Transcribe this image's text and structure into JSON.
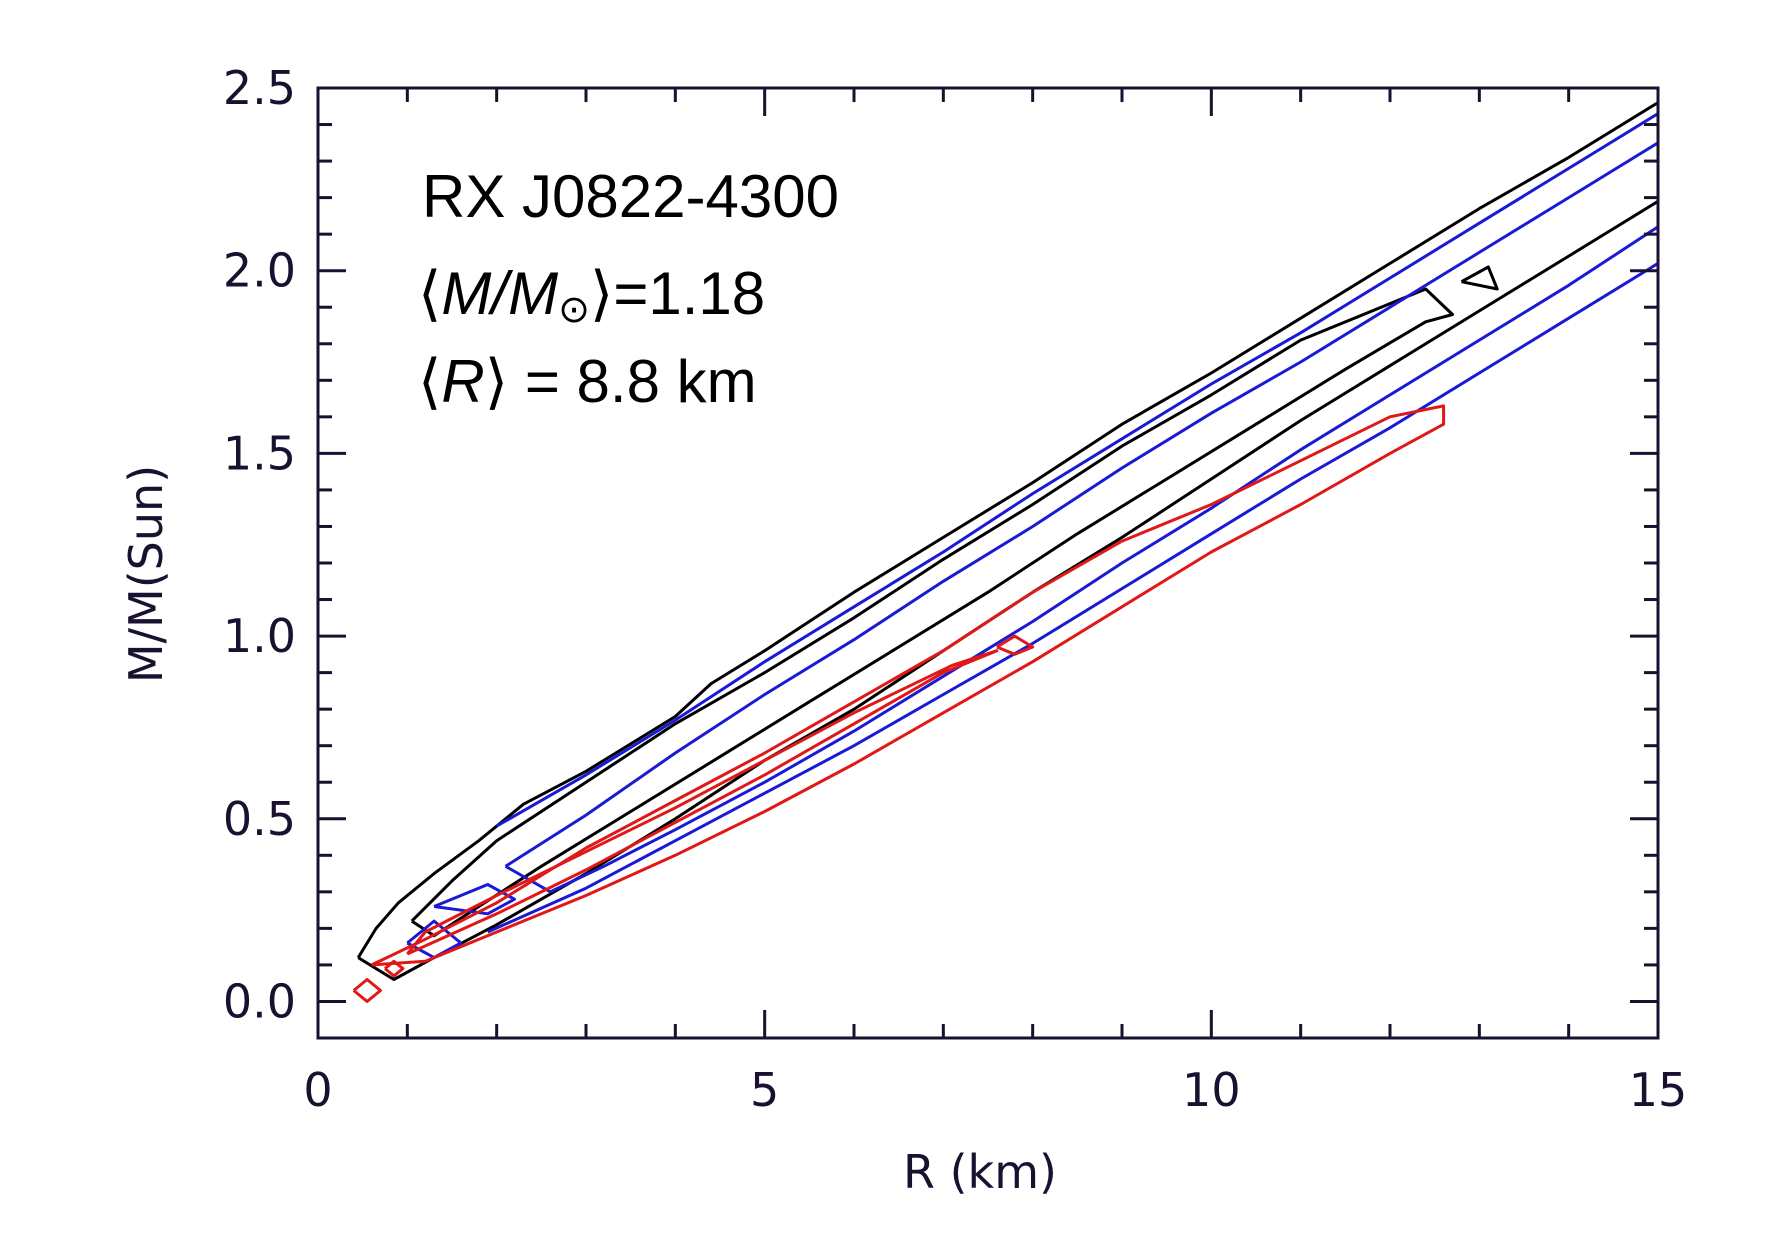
{
  "chart_data": {
    "type": "contour",
    "title": "",
    "xlabel": "R (km)",
    "ylabel": "M/M(Sun)",
    "xlim": [
      0,
      15
    ],
    "ylim": [
      -0.1,
      2.5
    ],
    "x_ticks": [
      0,
      5,
      10,
      15
    ],
    "x_tick_labels": [
      "0",
      "5",
      "10",
      "15"
    ],
    "x_minor_step": 1,
    "y_ticks": [
      0.0,
      0.5,
      1.0,
      1.5,
      2.0,
      2.5
    ],
    "y_tick_labels": [
      "0.0",
      "0.5",
      "1.0",
      "1.5",
      "2.0",
      "2.5"
    ],
    "y_minor_step": 0.1,
    "annotations": {
      "source": "RX J0822-4300",
      "mean_mass_prefix": "⟨",
      "mean_mass_var": "M/M",
      "mean_mass_sun": "⊙",
      "mean_mass_suffix": "⟩=1.18",
      "mean_radius_prefix": "⟨",
      "mean_radius_var": "R",
      "mean_radius_suffix": "⟩ = 8.8 km"
    },
    "colors": {
      "black": "#000000",
      "blue": "#1a1ad6",
      "red": "#e01818",
      "axis": "#1a1030"
    },
    "series": [
      {
        "name": "black-outer",
        "color": "#000000",
        "points": [
          [
            0.45,
            0.12
          ],
          [
            0.65,
            0.2
          ],
          [
            0.9,
            0.27
          ],
          [
            1.3,
            0.35
          ],
          [
            1.8,
            0.44
          ],
          [
            2.3,
            0.54
          ],
          [
            3.0,
            0.63
          ],
          [
            4.0,
            0.78
          ],
          [
            4.4,
            0.87
          ],
          [
            5.0,
            0.96
          ],
          [
            6.0,
            1.12
          ],
          [
            7.0,
            1.27
          ],
          [
            8.0,
            1.42
          ],
          [
            9.0,
            1.58
          ],
          [
            10.0,
            1.72
          ],
          [
            11.0,
            1.87
          ],
          [
            12.0,
            2.02
          ],
          [
            13.0,
            2.17
          ],
          [
            14.0,
            2.31
          ],
          [
            15.0,
            2.46
          ]
        ]
      },
      {
        "name": "black-outer-lower",
        "color": "#000000",
        "points": [
          [
            0.45,
            0.12
          ],
          [
            0.85,
            0.06
          ],
          [
            1.3,
            0.12
          ],
          [
            2.0,
            0.21
          ],
          [
            3.0,
            0.35
          ],
          [
            4.0,
            0.5
          ],
          [
            5.0,
            0.66
          ],
          [
            6.0,
            0.8
          ],
          [
            7.0,
            0.96
          ],
          [
            8.0,
            1.12
          ],
          [
            9.0,
            1.27
          ],
          [
            10.0,
            1.43
          ],
          [
            11.0,
            1.59
          ],
          [
            12.0,
            1.74
          ],
          [
            13.0,
            1.89
          ],
          [
            14.0,
            2.04
          ],
          [
            15.0,
            2.19
          ]
        ]
      },
      {
        "name": "black-inner",
        "color": "#000000",
        "points": [
          [
            1.05,
            0.22
          ],
          [
            1.5,
            0.33
          ],
          [
            2.0,
            0.44
          ],
          [
            3.0,
            0.6
          ],
          [
            4.0,
            0.76
          ],
          [
            5.0,
            0.9
          ],
          [
            6.0,
            1.05
          ],
          [
            7.0,
            1.21
          ],
          [
            8.0,
            1.36
          ],
          [
            9.0,
            1.52
          ],
          [
            10.0,
            1.66
          ],
          [
            11.0,
            1.81
          ],
          [
            12.4,
            1.95
          ],
          [
            12.7,
            1.88
          ],
          [
            12.4,
            1.86
          ],
          [
            11.5,
            1.73
          ],
          [
            10.5,
            1.58
          ],
          [
            9.5,
            1.43
          ],
          [
            8.5,
            1.28
          ],
          [
            7.5,
            1.12
          ],
          [
            6.5,
            0.97
          ],
          [
            5.5,
            0.82
          ],
          [
            4.5,
            0.67
          ],
          [
            3.5,
            0.52
          ],
          [
            2.5,
            0.37
          ],
          [
            1.8,
            0.26
          ],
          [
            1.3,
            0.18
          ],
          [
            1.05,
            0.22
          ]
        ]
      },
      {
        "name": "black-small",
        "color": "#000000",
        "points": [
          [
            12.8,
            1.97
          ],
          [
            13.1,
            2.01
          ],
          [
            13.2,
            1.95
          ],
          [
            12.8,
            1.97
          ]
        ]
      },
      {
        "name": "blue-upper",
        "color": "#1a1ad6",
        "points": [
          [
            2.0,
            0.48
          ],
          [
            3.0,
            0.62
          ],
          [
            4.0,
            0.77
          ],
          [
            5.0,
            0.93
          ],
          [
            6.0,
            1.08
          ],
          [
            7.0,
            1.23
          ],
          [
            8.0,
            1.39
          ],
          [
            9.0,
            1.54
          ],
          [
            10.0,
            1.69
          ],
          [
            11.0,
            1.83
          ],
          [
            12.0,
            1.98
          ],
          [
            13.0,
            2.13
          ],
          [
            14.0,
            2.28
          ],
          [
            15.0,
            2.43
          ]
        ]
      },
      {
        "name": "blue-mid",
        "color": "#1a1ad6",
        "points": [
          [
            2.1,
            0.37
          ],
          [
            3.0,
            0.51
          ],
          [
            4.0,
            0.68
          ],
          [
            5.0,
            0.84
          ],
          [
            6.0,
            0.99
          ],
          [
            7.0,
            1.15
          ],
          [
            8.0,
            1.3
          ],
          [
            9.0,
            1.46
          ],
          [
            10.0,
            1.61
          ],
          [
            11.0,
            1.75
          ],
          [
            12.0,
            1.9
          ],
          [
            13.0,
            2.05
          ],
          [
            14.0,
            2.2
          ],
          [
            15.0,
            2.35
          ]
        ]
      },
      {
        "name": "blue-lower",
        "color": "#1a1ad6",
        "points": [
          [
            2.1,
            0.37
          ],
          [
            2.6,
            0.3
          ],
          [
            3.2,
            0.37
          ],
          [
            4.0,
            0.47
          ],
          [
            5.0,
            0.6
          ],
          [
            6.0,
            0.74
          ],
          [
            7.0,
            0.89
          ],
          [
            8.0,
            1.04
          ],
          [
            9.0,
            1.2
          ],
          [
            10.0,
            1.35
          ],
          [
            11.0,
            1.51
          ],
          [
            12.0,
            1.66
          ],
          [
            13.0,
            1.81
          ],
          [
            14.0,
            1.96
          ],
          [
            15.0,
            2.12
          ]
        ]
      },
      {
        "name": "blue-bottom",
        "color": "#1a1ad6",
        "points": [
          [
            1.9,
            0.19
          ],
          [
            3.0,
            0.31
          ],
          [
            4.0,
            0.44
          ],
          [
            5.0,
            0.57
          ],
          [
            6.0,
            0.7
          ],
          [
            7.0,
            0.84
          ],
          [
            8.0,
            0.98
          ],
          [
            9.0,
            1.13
          ],
          [
            10.0,
            1.28
          ],
          [
            11.0,
            1.43
          ],
          [
            12.0,
            1.57
          ],
          [
            13.0,
            1.72
          ],
          [
            14.0,
            1.87
          ],
          [
            15.0,
            2.02
          ]
        ]
      },
      {
        "name": "blue-small-a",
        "color": "#1a1ad6",
        "points": [
          [
            1.3,
            0.26
          ],
          [
            1.9,
            0.32
          ],
          [
            2.2,
            0.28
          ],
          [
            1.9,
            0.24
          ],
          [
            1.3,
            0.26
          ]
        ]
      },
      {
        "name": "blue-small-b",
        "color": "#1a1ad6",
        "points": [
          [
            1.0,
            0.16
          ],
          [
            1.3,
            0.22
          ],
          [
            1.6,
            0.16
          ],
          [
            1.3,
            0.12
          ],
          [
            1.0,
            0.16
          ]
        ]
      },
      {
        "name": "red-upper",
        "color": "#e01818",
        "points": [
          [
            0.6,
            0.1
          ],
          [
            1.2,
            0.17
          ],
          [
            2.0,
            0.27
          ],
          [
            3.0,
            0.42
          ],
          [
            4.0,
            0.55
          ],
          [
            5.0,
            0.68
          ],
          [
            6.0,
            0.82
          ],
          [
            7.0,
            0.96
          ],
          [
            8.0,
            1.12
          ],
          [
            9.0,
            1.26
          ],
          [
            10.0,
            1.36
          ],
          [
            11.0,
            1.48
          ],
          [
            12.0,
            1.6
          ],
          [
            12.6,
            1.63
          ],
          [
            12.6,
            1.58
          ],
          [
            12.0,
            1.5
          ],
          [
            11.0,
            1.36
          ],
          [
            10.0,
            1.23
          ],
          [
            9.0,
            1.08
          ],
          [
            8.0,
            0.93
          ],
          [
            7.0,
            0.79
          ],
          [
            6.0,
            0.65
          ],
          [
            5.0,
            0.52
          ],
          [
            4.0,
            0.4
          ],
          [
            3.0,
            0.29
          ],
          [
            2.0,
            0.19
          ],
          [
            1.2,
            0.11
          ],
          [
            0.6,
            0.1
          ]
        ]
      },
      {
        "name": "red-inner",
        "color": "#e01818",
        "points": [
          [
            1.0,
            0.13
          ],
          [
            2.0,
            0.24
          ],
          [
            3.0,
            0.36
          ],
          [
            4.0,
            0.49
          ],
          [
            5.0,
            0.62
          ],
          [
            6.0,
            0.76
          ],
          [
            7.0,
            0.9
          ],
          [
            7.6,
            0.96
          ],
          [
            7.1,
            0.92
          ],
          [
            6.0,
            0.79
          ],
          [
            5.0,
            0.66
          ],
          [
            4.0,
            0.53
          ],
          [
            3.0,
            0.41
          ],
          [
            2.0,
            0.29
          ],
          [
            1.2,
            0.19
          ],
          [
            1.0,
            0.13
          ]
        ]
      },
      {
        "name": "red-small-a",
        "color": "#e01818",
        "points": [
          [
            7.6,
            0.97
          ],
          [
            7.8,
            1.0
          ],
          [
            8.0,
            0.97
          ],
          [
            7.8,
            0.95
          ],
          [
            7.6,
            0.97
          ]
        ]
      },
      {
        "name": "red-small-b",
        "color": "#e01818",
        "points": [
          [
            0.4,
            0.03
          ],
          [
            0.55,
            0.06
          ],
          [
            0.7,
            0.03
          ],
          [
            0.55,
            0.0
          ],
          [
            0.4,
            0.03
          ]
        ]
      },
      {
        "name": "red-small-c",
        "color": "#e01818",
        "points": [
          [
            0.75,
            0.09
          ],
          [
            0.85,
            0.11
          ],
          [
            0.95,
            0.09
          ],
          [
            0.85,
            0.07
          ],
          [
            0.75,
            0.09
          ]
        ]
      }
    ]
  }
}
